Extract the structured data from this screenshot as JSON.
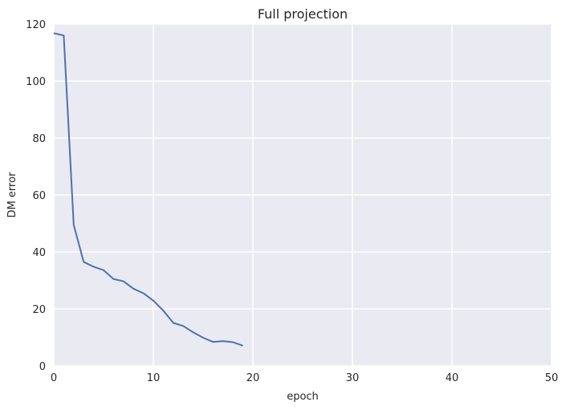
{
  "chart_data": {
    "type": "line",
    "title": "Full projection",
    "xlabel": "epoch",
    "ylabel": "DM error",
    "xlim": [
      0,
      50
    ],
    "ylim": [
      0,
      120
    ],
    "xticks": [
      0,
      10,
      20,
      30,
      40,
      50
    ],
    "yticks": [
      0,
      20,
      40,
      60,
      80,
      100,
      120
    ],
    "grid": true,
    "series": [
      {
        "color": "#4c72b0",
        "x": [
          0,
          1,
          2,
          3,
          4,
          5,
          6,
          7,
          8,
          9,
          10,
          11,
          12,
          13,
          14,
          15,
          16,
          17,
          18,
          19
        ],
        "y": [
          116.8,
          116.0,
          49.5,
          36.5,
          34.8,
          33.6,
          30.5,
          29.7,
          27.1,
          25.5,
          22.9,
          19.4,
          15.1,
          14.0,
          11.8,
          9.9,
          8.4,
          8.7,
          8.3,
          7.1
        ]
      }
    ],
    "colors": {
      "plot_background": "#eaeaf2",
      "grid": "#ffffff",
      "text": "#262626"
    }
  }
}
